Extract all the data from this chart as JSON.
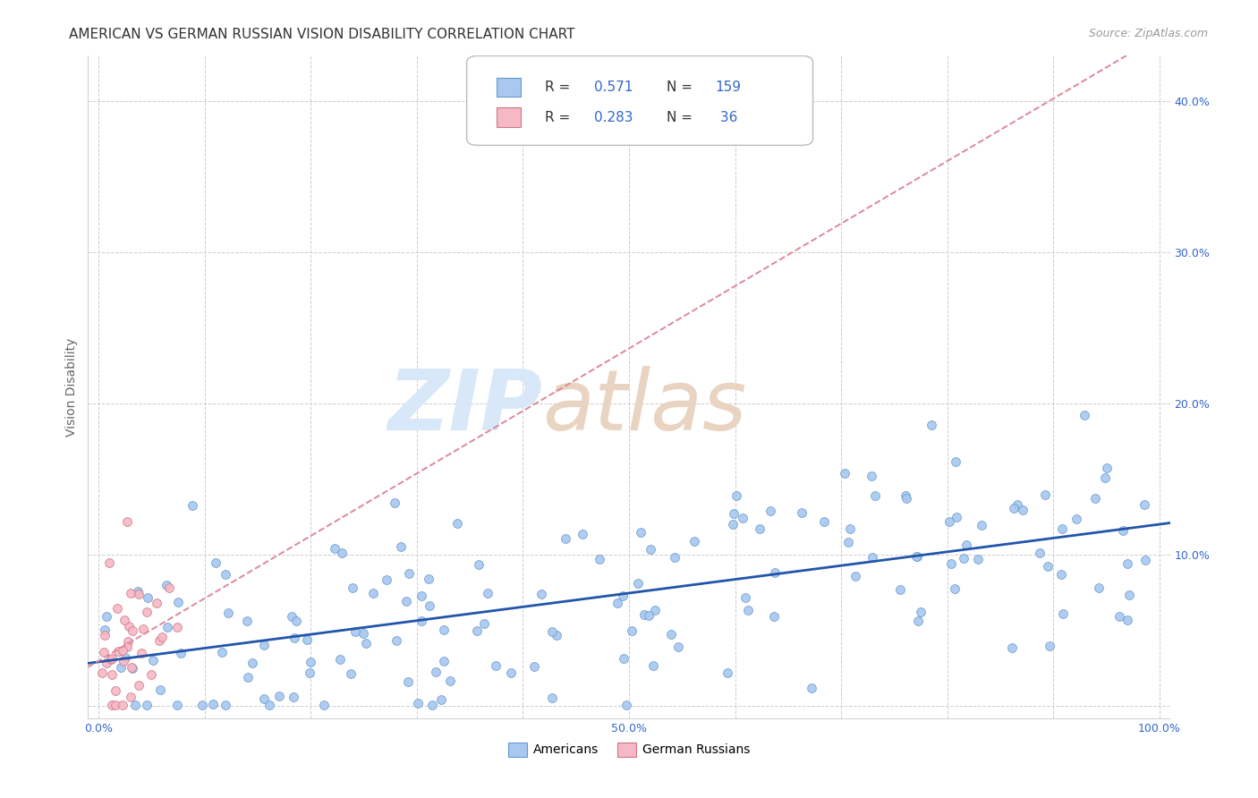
{
  "title": "AMERICAN VS GERMAN RUSSIAN VISION DISABILITY CORRELATION CHART",
  "source": "Source: ZipAtlas.com",
  "ylabel": "Vision Disability",
  "xlim": [
    -0.01,
    1.01
  ],
  "ylim": [
    -0.008,
    0.43
  ],
  "xticks": [
    0.0,
    0.1,
    0.2,
    0.3,
    0.4,
    0.5,
    0.6,
    0.7,
    0.8,
    0.9,
    1.0
  ],
  "xticklabels": [
    "0.0%",
    "",
    "",
    "",
    "",
    "",
    "",
    "",
    "",
    "",
    "100.0%"
  ],
  "yticks": [
    0.0,
    0.1,
    0.2,
    0.3,
    0.4
  ],
  "yticklabels": [
    "",
    "10.0%",
    "20.0%",
    "30.0%",
    "40.0%"
  ],
  "americans_R": 0.571,
  "americans_N": 159,
  "german_russians_R": 0.283,
  "german_russians_N": 36,
  "americans_color": "#a8c8f0",
  "americans_edge_color": "#6699cc",
  "german_russians_color": "#f5b8c4",
  "german_russians_edge_color": "#cc7788",
  "trend_american_color": "#2255aa",
  "trend_german_color": "#dd8899",
  "background_color": "#ffffff",
  "grid_color": "#cccccc",
  "watermark_zip_color": "#d8e8f8",
  "watermark_atlas_color": "#e8d4c0",
  "legend_text_color": "#333333",
  "legend_value_color": "#3366cc",
  "title_fontsize": 11,
  "source_fontsize": 9,
  "axis_label_fontsize": 10,
  "tick_fontsize": 9,
  "legend_fontsize": 11
}
